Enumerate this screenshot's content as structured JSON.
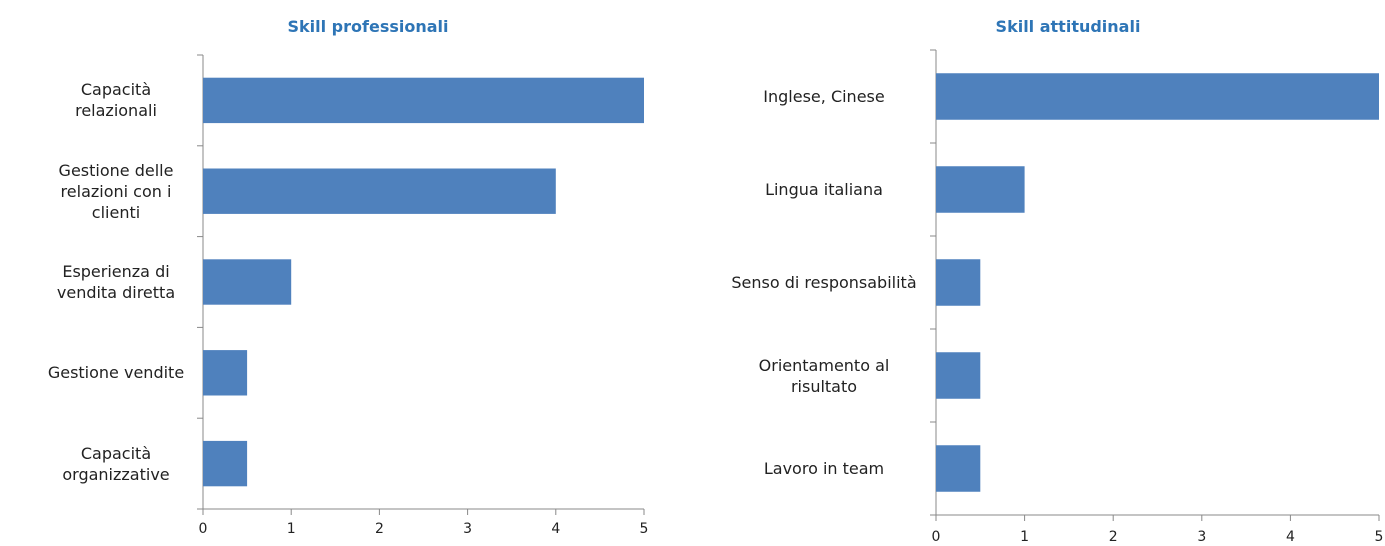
{
  "chart_data": [
    {
      "type": "bar",
      "title": "Skill professionali",
      "categories": [
        "Capacità relazionali",
        "Gestione delle relazioni con i clienti",
        "Esperienza di vendita diretta",
        "Gestione vendite",
        "Capacità organizzative"
      ],
      "values": [
        5,
        4,
        1,
        0.5,
        0.5
      ],
      "color": "#4f81bd",
      "xlim": [
        0,
        5
      ],
      "xticks": [
        0,
        1,
        2,
        3,
        4,
        5
      ]
    },
    {
      "type": "bar",
      "title": "Skill attitudinali",
      "categories": [
        "Inglese, Cinese",
        "Lingua italiana",
        "Senso di responsabilità",
        "Orientamento al risultato",
        "Lavoro in team"
      ],
      "values": [
        5,
        1,
        0.5,
        0.5,
        0.5
      ],
      "color": "#4f81bd",
      "xlim": [
        0,
        5
      ],
      "xticks": [
        0,
        1,
        2,
        3,
        4,
        5
      ]
    }
  ]
}
